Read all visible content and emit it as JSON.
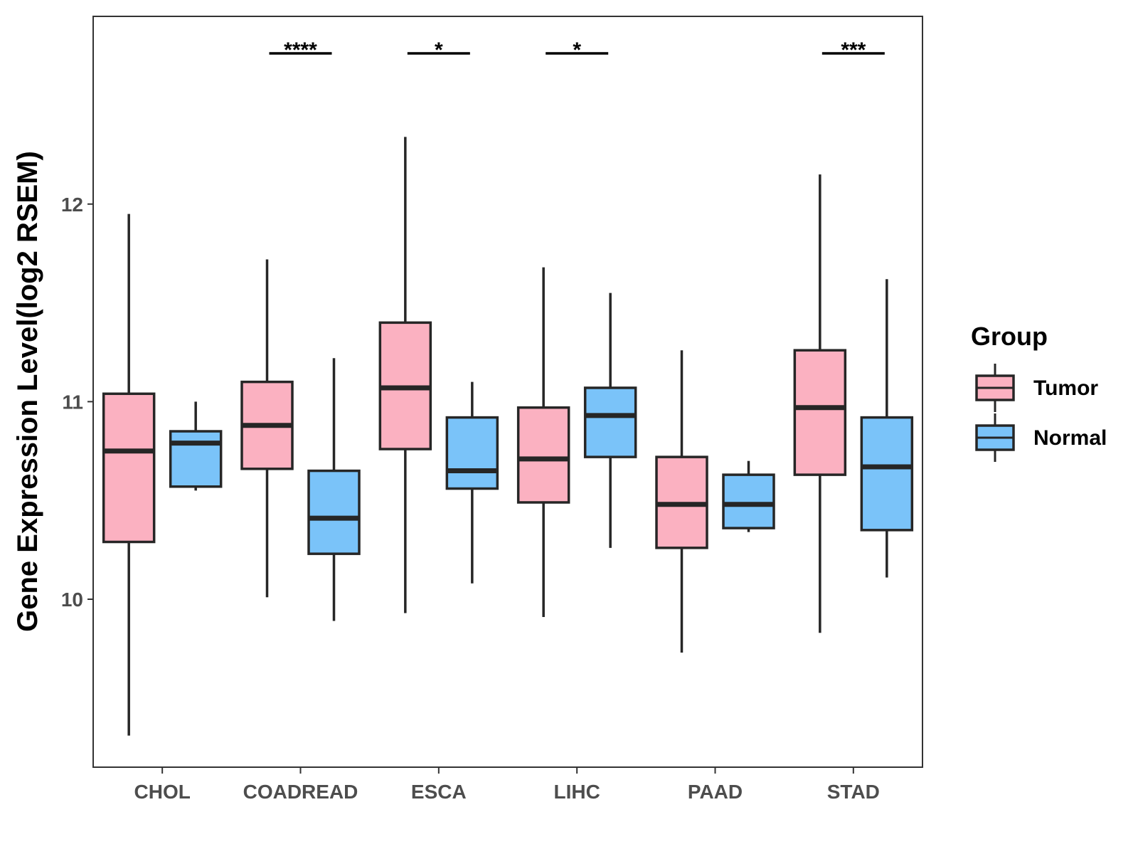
{
  "chart_data": {
    "type": "boxplot",
    "title": "",
    "xlabel": "",
    "ylabel": "Gene Expression Level(log2 RSEM)",
    "ylim": [
      9.15,
      12.95
    ],
    "yticks": [
      10,
      11,
      12
    ],
    "grid": false,
    "categories": [
      "CHOL",
      "COADREAD",
      "ESCA",
      "LIHC",
      "PAAD",
      "STAD"
    ],
    "series": [
      {
        "name": "Tumor",
        "color": "#FBB1C1",
        "boxes": [
          {
            "min": 9.31,
            "q1": 10.29,
            "median": 10.75,
            "q3": 11.04,
            "max": 11.95
          },
          {
            "min": 10.01,
            "q1": 10.66,
            "median": 10.88,
            "q3": 11.1,
            "max": 11.72
          },
          {
            "min": 9.93,
            "q1": 10.76,
            "median": 11.07,
            "q3": 11.4,
            "max": 12.34
          },
          {
            "min": 9.91,
            "q1": 10.49,
            "median": 10.71,
            "q3": 10.97,
            "max": 11.68
          },
          {
            "min": 9.73,
            "q1": 10.26,
            "median": 10.48,
            "q3": 10.72,
            "max": 11.26
          },
          {
            "min": 9.83,
            "q1": 10.63,
            "median": 10.97,
            "q3": 11.26,
            "max": 12.15
          }
        ]
      },
      {
        "name": "Normal",
        "color": "#7AC3F9",
        "boxes": [
          {
            "min": 10.55,
            "q1": 10.57,
            "median": 10.79,
            "q3": 10.85,
            "max": 11.0
          },
          {
            "min": 9.89,
            "q1": 10.23,
            "median": 10.41,
            "q3": 10.65,
            "max": 11.22
          },
          {
            "min": 10.08,
            "q1": 10.56,
            "median": 10.65,
            "q3": 10.92,
            "max": 11.1
          },
          {
            "min": 10.26,
            "q1": 10.72,
            "median": 10.93,
            "q3": 11.07,
            "max": 11.55
          },
          {
            "min": 10.34,
            "q1": 10.36,
            "median": 10.48,
            "q3": 10.63,
            "max": 10.7
          },
          {
            "min": 10.11,
            "q1": 10.35,
            "median": 10.67,
            "q3": 10.92,
            "max": 11.62
          }
        ]
      }
    ],
    "significance": [
      {
        "category": "CHOL",
        "label": ""
      },
      {
        "category": "COADREAD",
        "label": "****"
      },
      {
        "category": "ESCA",
        "label": "*"
      },
      {
        "category": "LIHC",
        "label": "*"
      },
      {
        "category": "PAAD",
        "label": ""
      },
      {
        "category": "STAD",
        "label": "***"
      }
    ],
    "legend": {
      "title": "Group",
      "position": "right",
      "items": [
        "Tumor",
        "Normal"
      ]
    }
  }
}
